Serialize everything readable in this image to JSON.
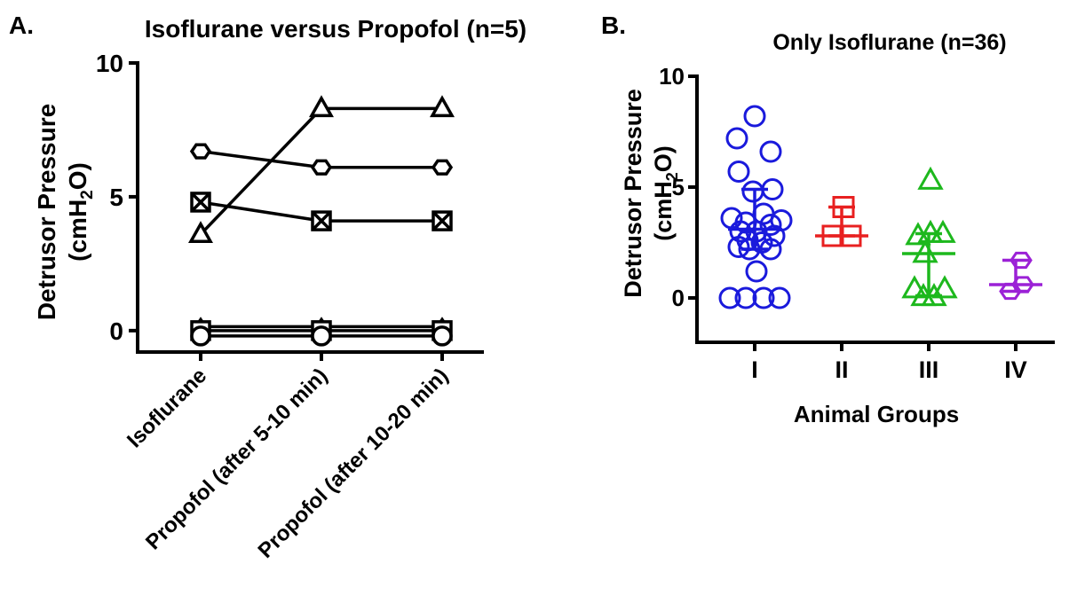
{
  "chart_data": [
    {
      "panel_label": "A.",
      "type": "line",
      "title": "Isoflurane versus Propofol (n=5)",
      "xlabel": "",
      "ylabel": "Detrusor Pressure",
      "ylabel_unit": {
        "prefix": "(cmH",
        "sub": "2",
        "suffix": "O)"
      },
      "categories": [
        "Isoflurane",
        "Propofol (after 5-10 min)",
        "Propofol (after 10-20 min)"
      ],
      "ylim": [
        -0.8,
        10
      ],
      "yticks": [
        0,
        5,
        10
      ],
      "grid": false,
      "color": "#000000",
      "series": [
        {
          "marker": "triangle",
          "values": [
            3.6,
            8.3,
            8.3
          ]
        },
        {
          "marker": "hexagon",
          "values": [
            6.7,
            6.1,
            6.1
          ]
        },
        {
          "marker": "square-x",
          "values": [
            4.8,
            4.1,
            4.1
          ]
        },
        {
          "marker": "diamond",
          "values": [
            0.15,
            0.15,
            0.15
          ]
        },
        {
          "marker": "square",
          "values": [
            0,
            0,
            0
          ]
        },
        {
          "marker": "circle",
          "values": [
            -0.2,
            -0.2,
            -0.2
          ]
        }
      ]
    },
    {
      "panel_label": "B.",
      "type": "scatter",
      "title": "Only Isoflurane (n=36)",
      "xlabel": "Animal Groups",
      "ylabel": "Detrusor Pressure",
      "ylabel_unit": {
        "prefix": "(cmH",
        "sub": "2",
        "suffix": "O)"
      },
      "categories": [
        "I",
        "II",
        "III",
        "IV"
      ],
      "ylim": [
        -2,
        10
      ],
      "yticks": [
        0,
        5,
        10
      ],
      "grid": false,
      "groups": [
        {
          "category": "I",
          "marker": "circle",
          "color": "#1a1adc",
          "points": [
            {
              "o": 0,
              "y": 8.2
            },
            {
              "o": -0.5,
              "y": 7.2
            },
            {
              "o": 0.45,
              "y": 6.6
            },
            {
              "o": -0.45,
              "y": 5.7
            },
            {
              "o": 0.5,
              "y": 4.9
            },
            {
              "o": -0.05,
              "y": 4.8
            },
            {
              "o": 0.25,
              "y": 3.8
            },
            {
              "o": -0.65,
              "y": 3.6
            },
            {
              "o": 0.75,
              "y": 3.5
            },
            {
              "o": -0.25,
              "y": 3.4
            },
            {
              "o": 0.45,
              "y": 3.3
            },
            {
              "o": -0.4,
              "y": 3.0
            },
            {
              "o": 0.05,
              "y": 3.0
            },
            {
              "o": 0.55,
              "y": 2.8
            },
            {
              "o": -0.2,
              "y": 2.6
            },
            {
              "o": 0.2,
              "y": 2.5
            },
            {
              "o": -0.45,
              "y": 2.3
            },
            {
              "o": -0.15,
              "y": 2.2
            },
            {
              "o": 0.45,
              "y": 2.2
            },
            {
              "o": 0.05,
              "y": 1.2
            },
            {
              "o": -0.7,
              "y": 0
            },
            {
              "o": -0.25,
              "y": 0
            },
            {
              "o": 0.25,
              "y": 0
            },
            {
              "o": 0.7,
              "y": 0
            }
          ],
          "median": 3.1,
          "iqr": [
            2.2,
            4.9
          ]
        },
        {
          "category": "II",
          "marker": "square",
          "color": "#e82020",
          "points": [
            {
              "o": 0.05,
              "y": 4.1
            },
            {
              "o": -0.25,
              "y": 2.8
            },
            {
              "o": 0.25,
              "y": 2.8
            }
          ],
          "median": 2.8,
          "iqr": [
            2.8,
            4.1
          ]
        },
        {
          "category": "III",
          "marker": "triangle",
          "color": "#1db81d",
          "points": [
            {
              "o": 0.05,
              "y": 5.3
            },
            {
              "o": -0.3,
              "y": 2.8
            },
            {
              "o": 0.05,
              "y": 2.9
            },
            {
              "o": 0.4,
              "y": 2.9
            },
            {
              "o": -0.1,
              "y": 2.0
            },
            {
              "o": -0.4,
              "y": 0.4
            },
            {
              "o": 0.45,
              "y": 0.4
            },
            {
              "o": -0.15,
              "y": 0.05
            },
            {
              "o": 0.15,
              "y": 0.05
            }
          ],
          "median": 2.0,
          "iqr": [
            0.1,
            2.9
          ]
        },
        {
          "category": "IV",
          "marker": "hexagon",
          "color": "#9b21d6",
          "points": [
            {
              "o": 0.15,
              "y": 1.7
            },
            {
              "o": -0.15,
              "y": 0.3
            },
            {
              "o": 0.2,
              "y": 0.6
            }
          ],
          "median": 0.6,
          "iqr": [
            0.3,
            1.7
          ]
        }
      ]
    }
  ]
}
